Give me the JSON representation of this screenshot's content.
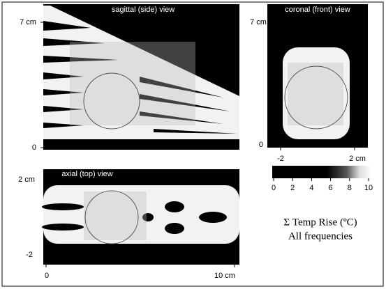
{
  "panels": [
    {
      "title": "sagittal (side) view",
      "y_ticks": [
        "7 cm",
        "0"
      ]
    },
    {
      "title": "coronal (front) view",
      "y_ticks": [
        "7 cm",
        "0"
      ],
      "x_ticks": [
        "-2",
        "2 cm"
      ]
    },
    {
      "title": "axial (top) view",
      "y_ticks": [
        "2 cm",
        "-2"
      ],
      "x_ticks": [
        "0",
        "10 cm"
      ]
    }
  ],
  "colorbar": {
    "ticks": [
      "0",
      "2",
      "4",
      "6",
      "8",
      "10"
    ]
  },
  "caption": [
    "Σ Temp Rise  (ºC)",
    "All frequencies"
  ]
}
